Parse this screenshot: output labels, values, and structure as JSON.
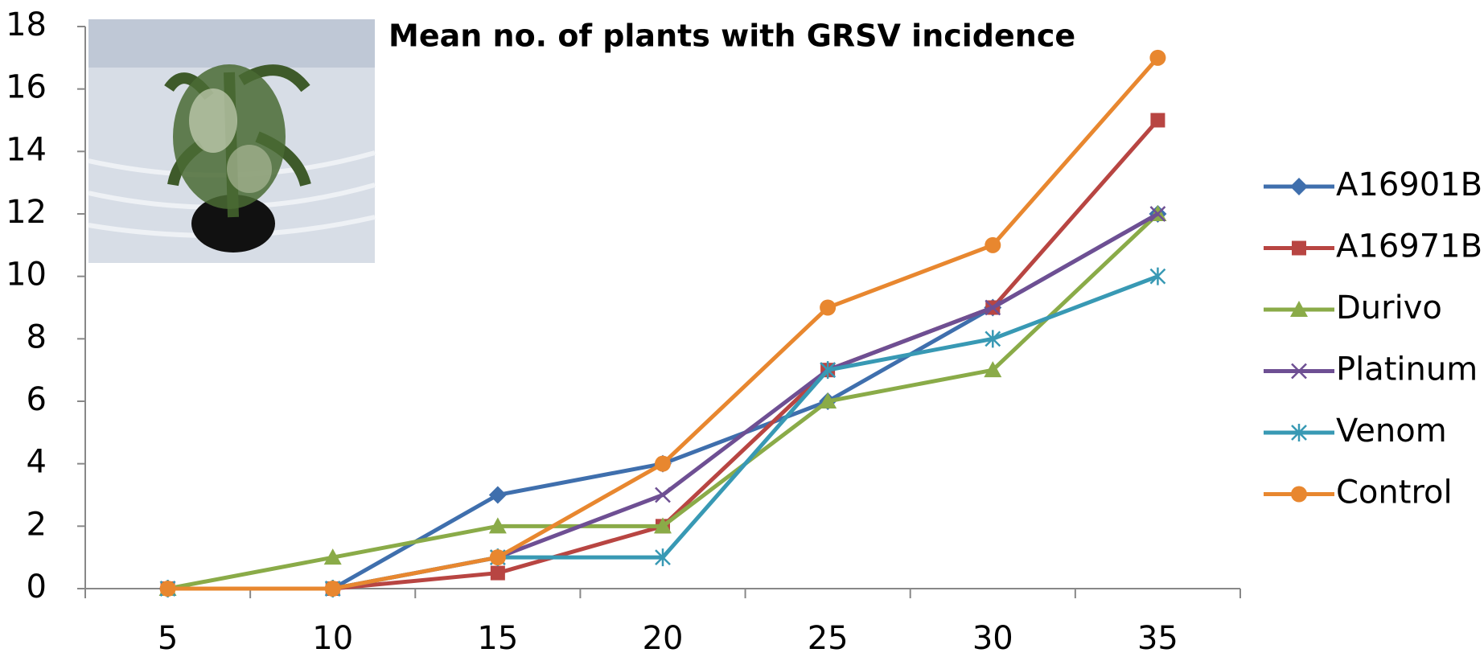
{
  "chart_data": {
    "type": "line",
    "title": "Mean no. of plants with GRSV incidence",
    "categories": [
      "5",
      "10",
      "15",
      "20",
      "25",
      "30",
      "35"
    ],
    "series": [
      {
        "name": "A16901B",
        "color": "#3f6fad",
        "marker": "diamond",
        "values": [
          0,
          0,
          3,
          4,
          6,
          9,
          12
        ]
      },
      {
        "name": "A16971B",
        "color": "#b84542",
        "marker": "square",
        "values": [
          0,
          0,
          0.5,
          2,
          7,
          9,
          15
        ]
      },
      {
        "name": "Durivo",
        "color": "#8aab48",
        "marker": "triangle",
        "values": [
          0,
          1,
          2,
          2,
          6,
          7,
          12
        ]
      },
      {
        "name": "Platinum",
        "color": "#6e4f93",
        "marker": "x",
        "values": [
          0,
          0,
          1,
          3,
          7,
          9,
          12
        ]
      },
      {
        "name": "Venom",
        "color": "#3899b4",
        "marker": "star",
        "values": [
          0,
          0,
          1,
          1,
          7,
          8,
          10
        ]
      },
      {
        "name": "Control",
        "color": "#e8872f",
        "marker": "circle",
        "values": [
          0,
          0,
          1,
          4,
          9,
          11,
          17
        ]
      }
    ],
    "ylim": [
      0,
      18
    ],
    "yticks": [
      0,
      2,
      4,
      6,
      8,
      10,
      12,
      14,
      16,
      18
    ],
    "legend": "right"
  }
}
